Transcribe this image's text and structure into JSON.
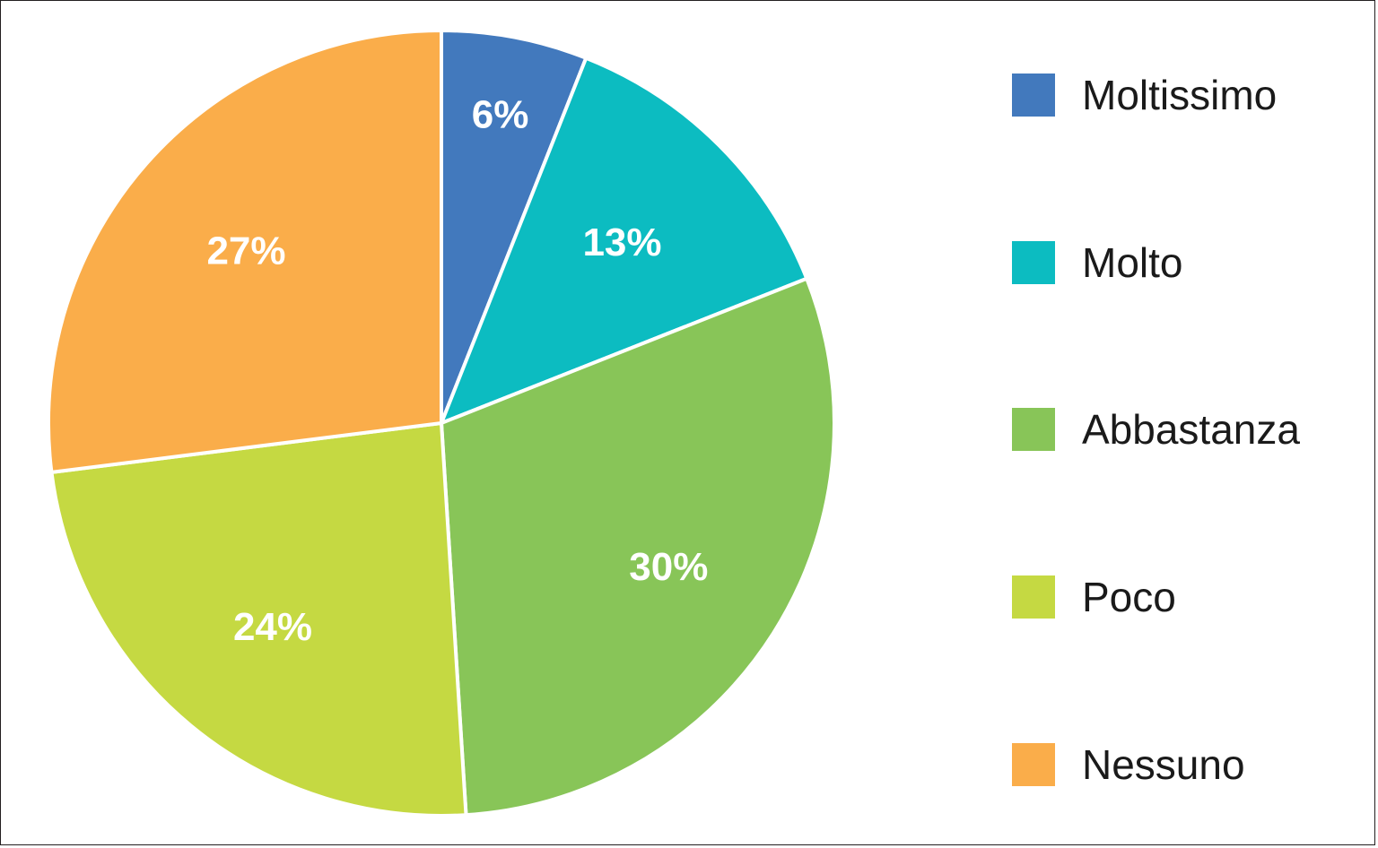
{
  "chart_data": {
    "type": "pie",
    "title": "",
    "categories": [
      "Moltissimo",
      "Molto",
      "Abbastanza",
      "Poco",
      "Nessuno"
    ],
    "values": [
      6,
      13,
      30,
      24,
      27
    ],
    "labels": [
      "6%",
      "13%",
      "30%",
      "24%",
      "27%"
    ],
    "colors": [
      "#4279bd",
      "#0cbcc1",
      "#88c558",
      "#c5d942",
      "#faad4a"
    ],
    "start_angle": "12 o'clock",
    "direction": "clockwise",
    "legend_position": "right"
  }
}
